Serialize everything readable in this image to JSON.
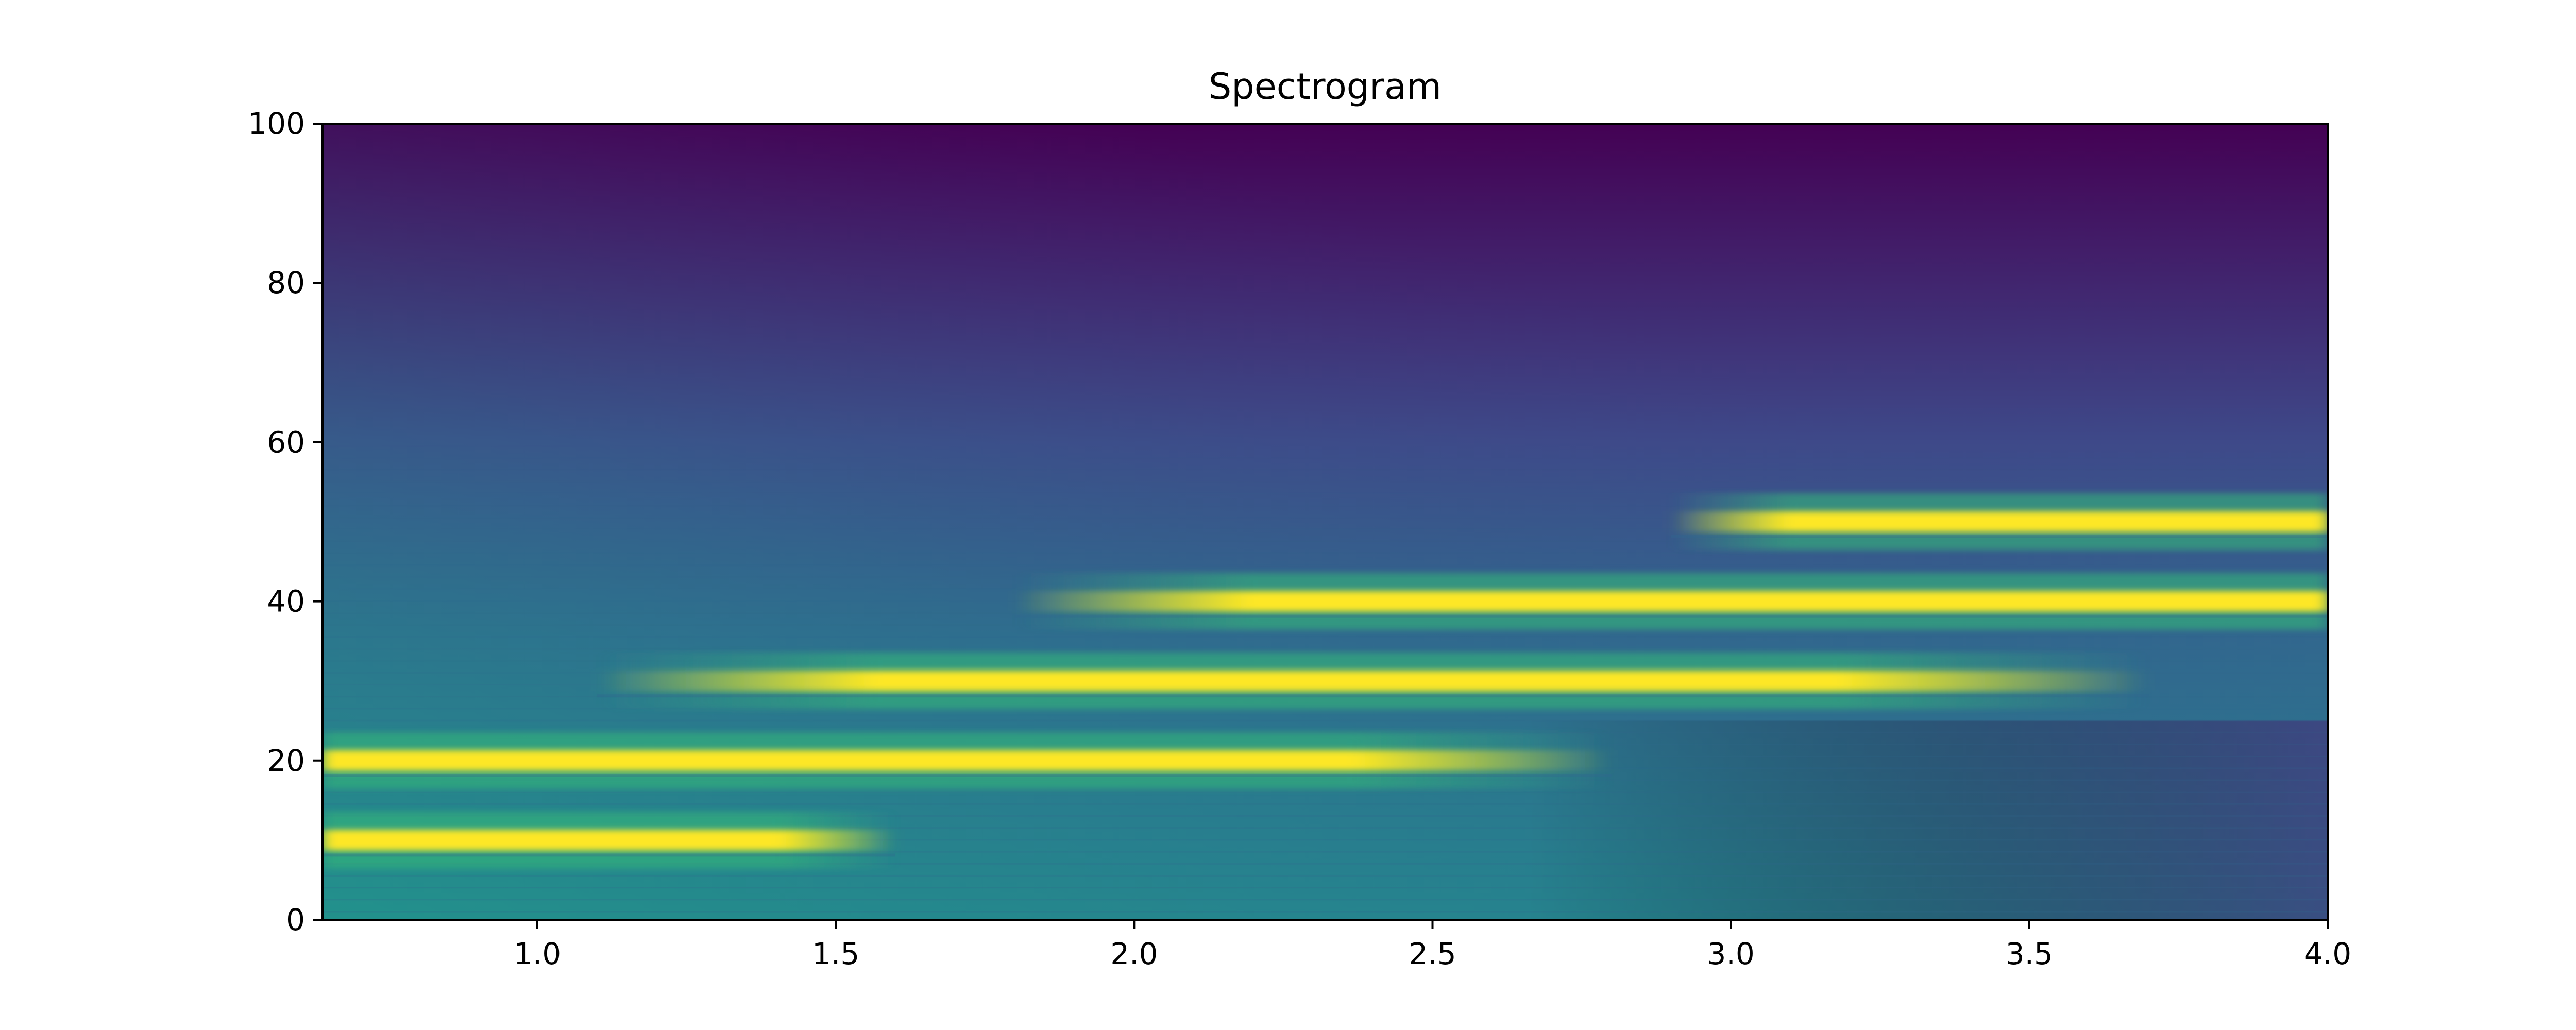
{
  "chart_data": {
    "type": "heatmap",
    "title": "Spectrogram",
    "xlabel": "",
    "ylabel": "",
    "xlim": [
      0.64,
      4.0
    ],
    "ylim": [
      0,
      100
    ],
    "xticks": [
      "1.0",
      "1.5",
      "2.0",
      "2.5",
      "3.0",
      "3.5",
      "4.0"
    ],
    "yticks": [
      "0",
      "20",
      "40",
      "60",
      "80",
      "100"
    ],
    "colormap": [
      "#440154",
      "#482878",
      "#3e4989",
      "#31688e",
      "#26828e",
      "#1f9e89",
      "#35b779",
      "#6ece58",
      "#b5de2b",
      "#fde725"
    ],
    "background": {
      "low_freq_low_time_color": "#26828e",
      "high_freq_color": "#440154",
      "low_freq_high_time_color": "#3e4989"
    },
    "bands": [
      {
        "freq": 10,
        "t_start": 0.64,
        "t_end": 1.6
      },
      {
        "freq": 20,
        "t_start": 0.64,
        "t_end": 2.8
      },
      {
        "freq": 30,
        "t_start": 1.1,
        "t_end": 3.7
      },
      {
        "freq": 40,
        "t_start": 1.8,
        "t_end": 4.0
      },
      {
        "freq": 50,
        "t_start": 2.9,
        "t_end": 4.0
      }
    ],
    "grid": false,
    "legend": "none"
  }
}
